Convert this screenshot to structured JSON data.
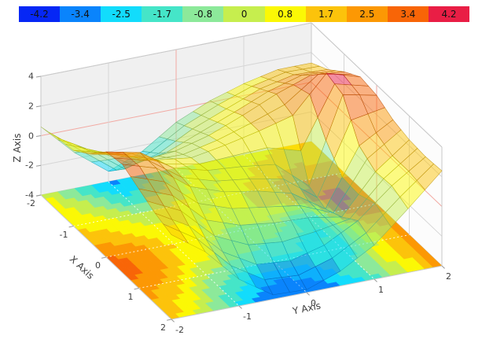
{
  "colorbar": {
    "tick_labels": [
      "-4.2",
      "-3.4",
      "-2.5",
      "-1.7",
      "-0.8",
      "0",
      "0.8",
      "1.7",
      "2.5",
      "3.4",
      "4.2"
    ],
    "tick_values": [
      -4.2,
      -3.4,
      -2.5,
      -1.7,
      -0.8,
      0,
      0.8,
      1.7,
      2.5,
      3.4,
      4.2
    ],
    "colors": [
      "#0627f5",
      "#0a84fc",
      "#12dcfc",
      "#45e5c8",
      "#8ce99a",
      "#c6ee4e",
      "#fbf805",
      "#fcc30b",
      "#fc9804",
      "#f86507",
      "#e91e45"
    ],
    "band_width": 0.84,
    "position": "top-horizontal"
  },
  "axes": {
    "x": {
      "title": "X Axis",
      "tick_labels": [
        "-2",
        "-1",
        "0",
        "1",
        "2"
      ],
      "tick_values": [
        -2,
        -1,
        0,
        1,
        2
      ],
      "range": [
        -2,
        2
      ]
    },
    "y": {
      "title": "Y Axis",
      "tick_labels": [
        "-2",
        "-1",
        "0",
        "1",
        "2"
      ],
      "tick_values": [
        -2,
        -1,
        0,
        1,
        2
      ],
      "range": [
        -2,
        2
      ]
    },
    "z": {
      "title": "Z Axis",
      "tick_labels": [
        "4",
        "2",
        "0",
        "-2",
        "-4"
      ],
      "tick_values": [
        4,
        2,
        0,
        -2,
        -4
      ],
      "range": [
        -4,
        4
      ]
    }
  },
  "chart_data": {
    "type": "surface",
    "subtype": "3d-surface-with-filled-contour-floor-projection",
    "colormap": "jet-like, 11 discrete bands (see colorbar.colors)",
    "surface_opacity": 0.5,
    "floor_projection_z": -4,
    "x": [
      -2,
      -1.5,
      -1,
      -0.5,
      0,
      0.5,
      1,
      1.5,
      2
    ],
    "y": [
      -2,
      -1.5,
      -1,
      -0.5,
      0,
      0.5,
      1,
      1.5,
      2
    ],
    "z": [
      [
        0.6,
        -1.6,
        -3.3,
        -2.4,
        -0.9,
        0.1,
        0.8,
        1.3,
        1.3
      ],
      [
        0.9,
        -0.4,
        -2.1,
        -1.5,
        -0.3,
        0.6,
        1.5,
        2.0,
        1.9
      ],
      [
        1.1,
        0.5,
        -0.5,
        -0.3,
        0.3,
        1.2,
        2.2,
        3.0,
        2.8
      ],
      [
        1.9,
        1.4,
        0.6,
        0.3,
        0.7,
        1.2,
        1.8,
        4.2,
        3.5
      ],
      [
        3.1,
        2.6,
        1.1,
        0.5,
        0.3,
        0.0,
        -1.9,
        3.8,
        3.3
      ],
      [
        3.3,
        2.6,
        0.9,
        0.1,
        -0.3,
        -0.9,
        -2.4,
        1.4,
        2.7
      ],
      [
        2.7,
        1.8,
        -0.3,
        -1.1,
        -1.4,
        -1.5,
        -1.9,
        0.7,
        2.4
      ],
      [
        2.1,
        0.8,
        -1.4,
        -2.7,
        -2.9,
        -2.3,
        -1.1,
        0.8,
        2.3
      ],
      [
        1.7,
        0.1,
        -2.2,
        -3.7,
        -3.8,
        -3.0,
        -1.7,
        0.3,
        2.4
      ]
    ],
    "xlim": [
      -2,
      2
    ],
    "ylim": [
      -2,
      2
    ],
    "zlim": [
      -4,
      4
    ],
    "grid": "wall gridlines every 2 in z and every 1 in x/y; zero gridlines tinted red; white dashed gridlines on floor contour"
  },
  "styles": {
    "background": "#ffffff",
    "wall_left": "#f0f0f0",
    "wall_right": "#fcfcfc",
    "floor_base": "#f4f4f4",
    "grid_line": "#d6d6d6",
    "zero_grid_line": "#f2a9a2",
    "edge_line": "#c9c9c9",
    "tick_mark": "#9a9a9a",
    "tick_text": "#3d3d3d",
    "floor_grid_line": "#ffffff"
  }
}
